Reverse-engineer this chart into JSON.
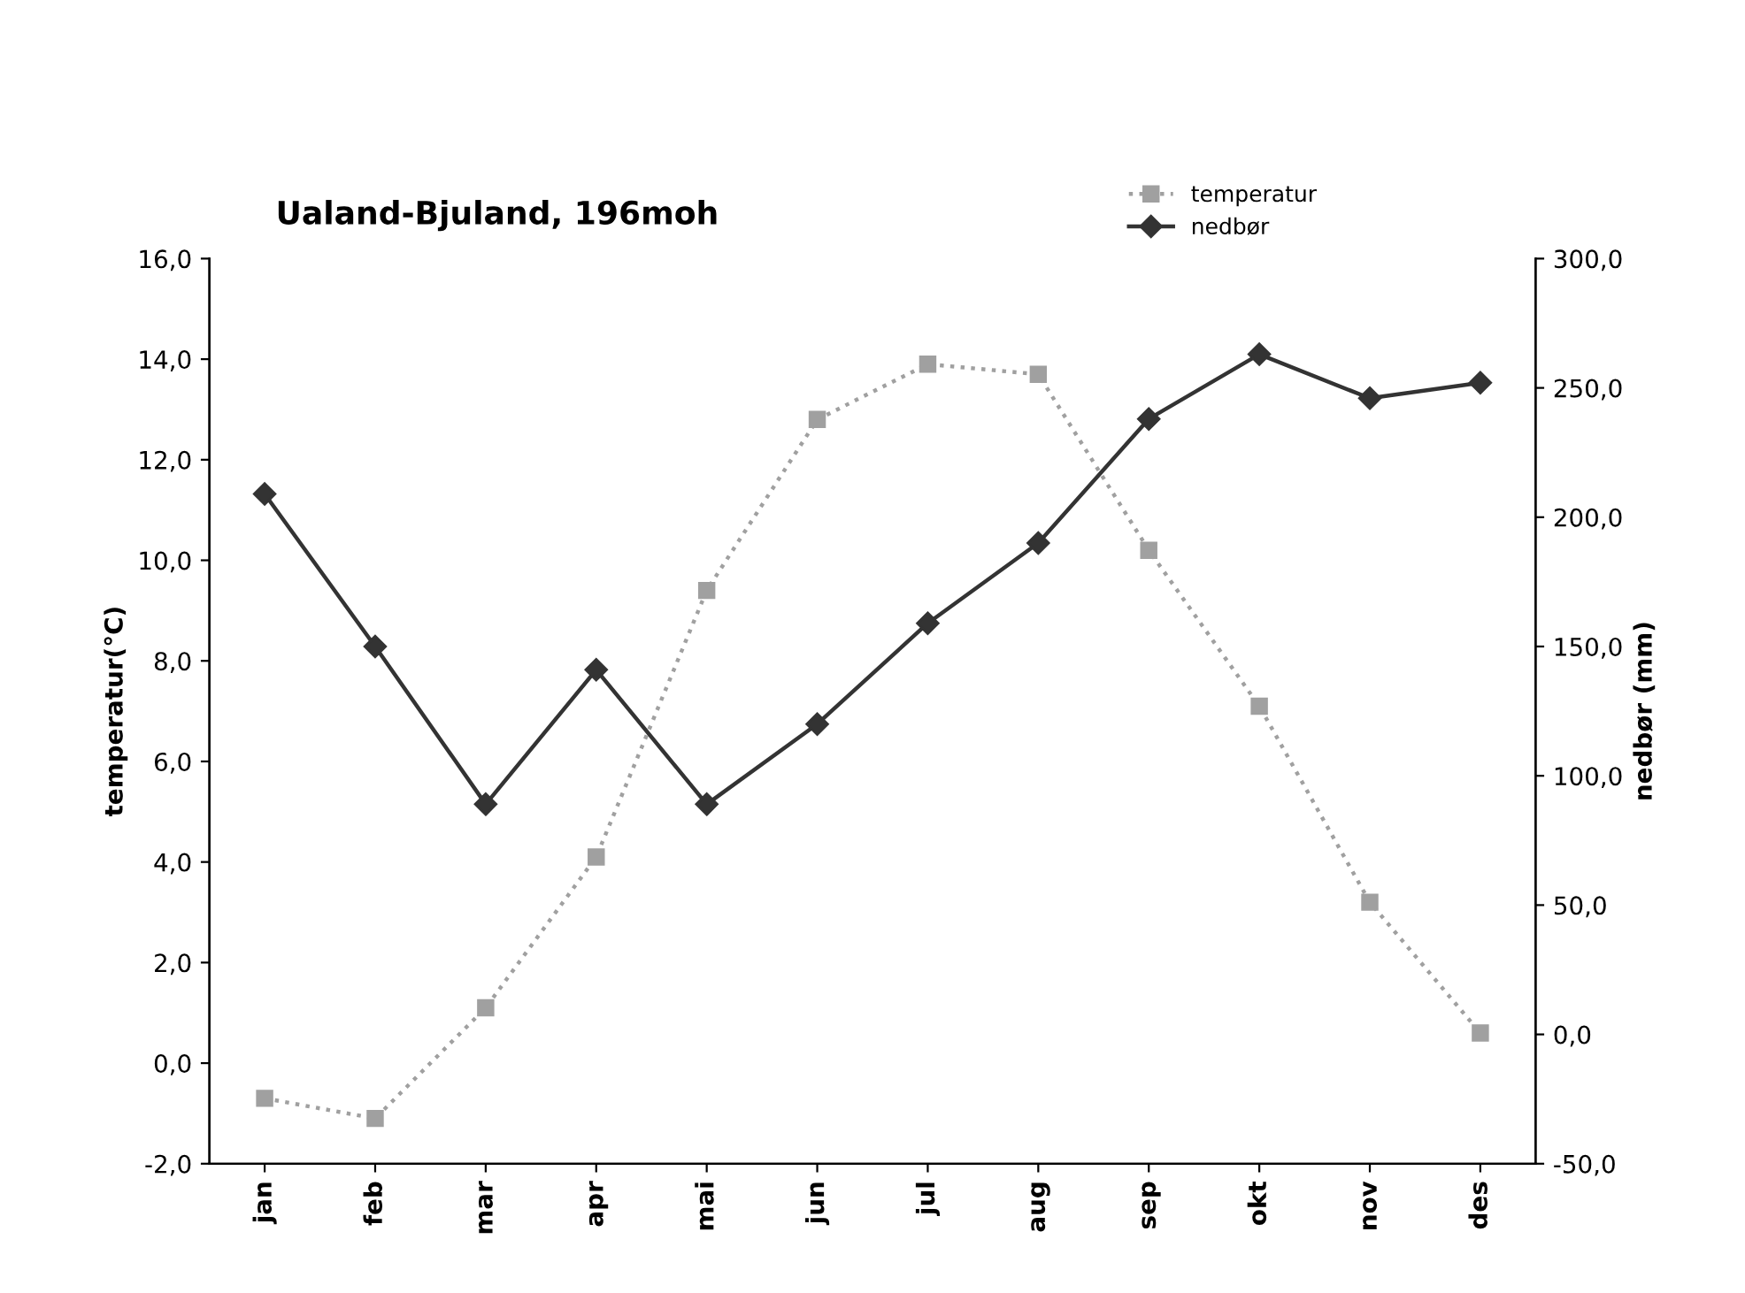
{
  "chart_data": {
    "type": "line",
    "title": "Ualand-Bjuland, 196moh",
    "ylabel": "temperatur(°C)",
    "y2label": "nedbør (mm)",
    "categories": [
      "jan",
      "feb",
      "mar",
      "apr",
      "mai",
      "jun",
      "jul",
      "aug",
      "sep",
      "okt",
      "nov",
      "des"
    ],
    "series": [
      {
        "name": "temperatur",
        "color": "#a0a0a0",
        "marker": "square",
        "line_style": "dotted",
        "values": [
          -0.7,
          -1.1,
          1.1,
          4.1,
          9.4,
          12.8,
          13.9,
          13.7,
          10.2,
          7.1,
          3.2,
          0.6
        ]
      },
      {
        "name": "nedbør",
        "color": "#333333",
        "marker": "diamond",
        "line_style": "solid",
        "axis": "y2",
        "values": [
          209,
          150,
          89,
          141,
          89,
          120,
          159,
          190,
          238,
          263,
          246,
          252
        ]
      }
    ],
    "ylim": [
      -2,
      16
    ],
    "yticks": [
      {
        "value": -2,
        "label": "-2,0"
      },
      {
        "value": 0,
        "label": "0,0"
      },
      {
        "value": 2,
        "label": "2,0"
      },
      {
        "value": 4,
        "label": "4,0"
      },
      {
        "value": 6,
        "label": "6,0"
      },
      {
        "value": 8,
        "label": "8,0"
      },
      {
        "value": 10,
        "label": "10,0"
      },
      {
        "value": 12,
        "label": "12,0"
      },
      {
        "value": 14,
        "label": "14,0"
      },
      {
        "value": 16,
        "label": "16,0"
      }
    ],
    "y2lim": [
      -50,
      300
    ],
    "y2ticks": [
      {
        "value": -50,
        "label": "-50,0"
      },
      {
        "value": 0,
        "label": "0,0"
      },
      {
        "value": 50,
        "label": "50,0"
      },
      {
        "value": 100,
        "label": "100,0"
      },
      {
        "value": 150,
        "label": "150,0"
      },
      {
        "value": 200,
        "label": "200,0"
      },
      {
        "value": 250,
        "label": "250,0"
      },
      {
        "value": 300,
        "label": "300,0"
      }
    ],
    "grid": false,
    "legend": "top right"
  }
}
